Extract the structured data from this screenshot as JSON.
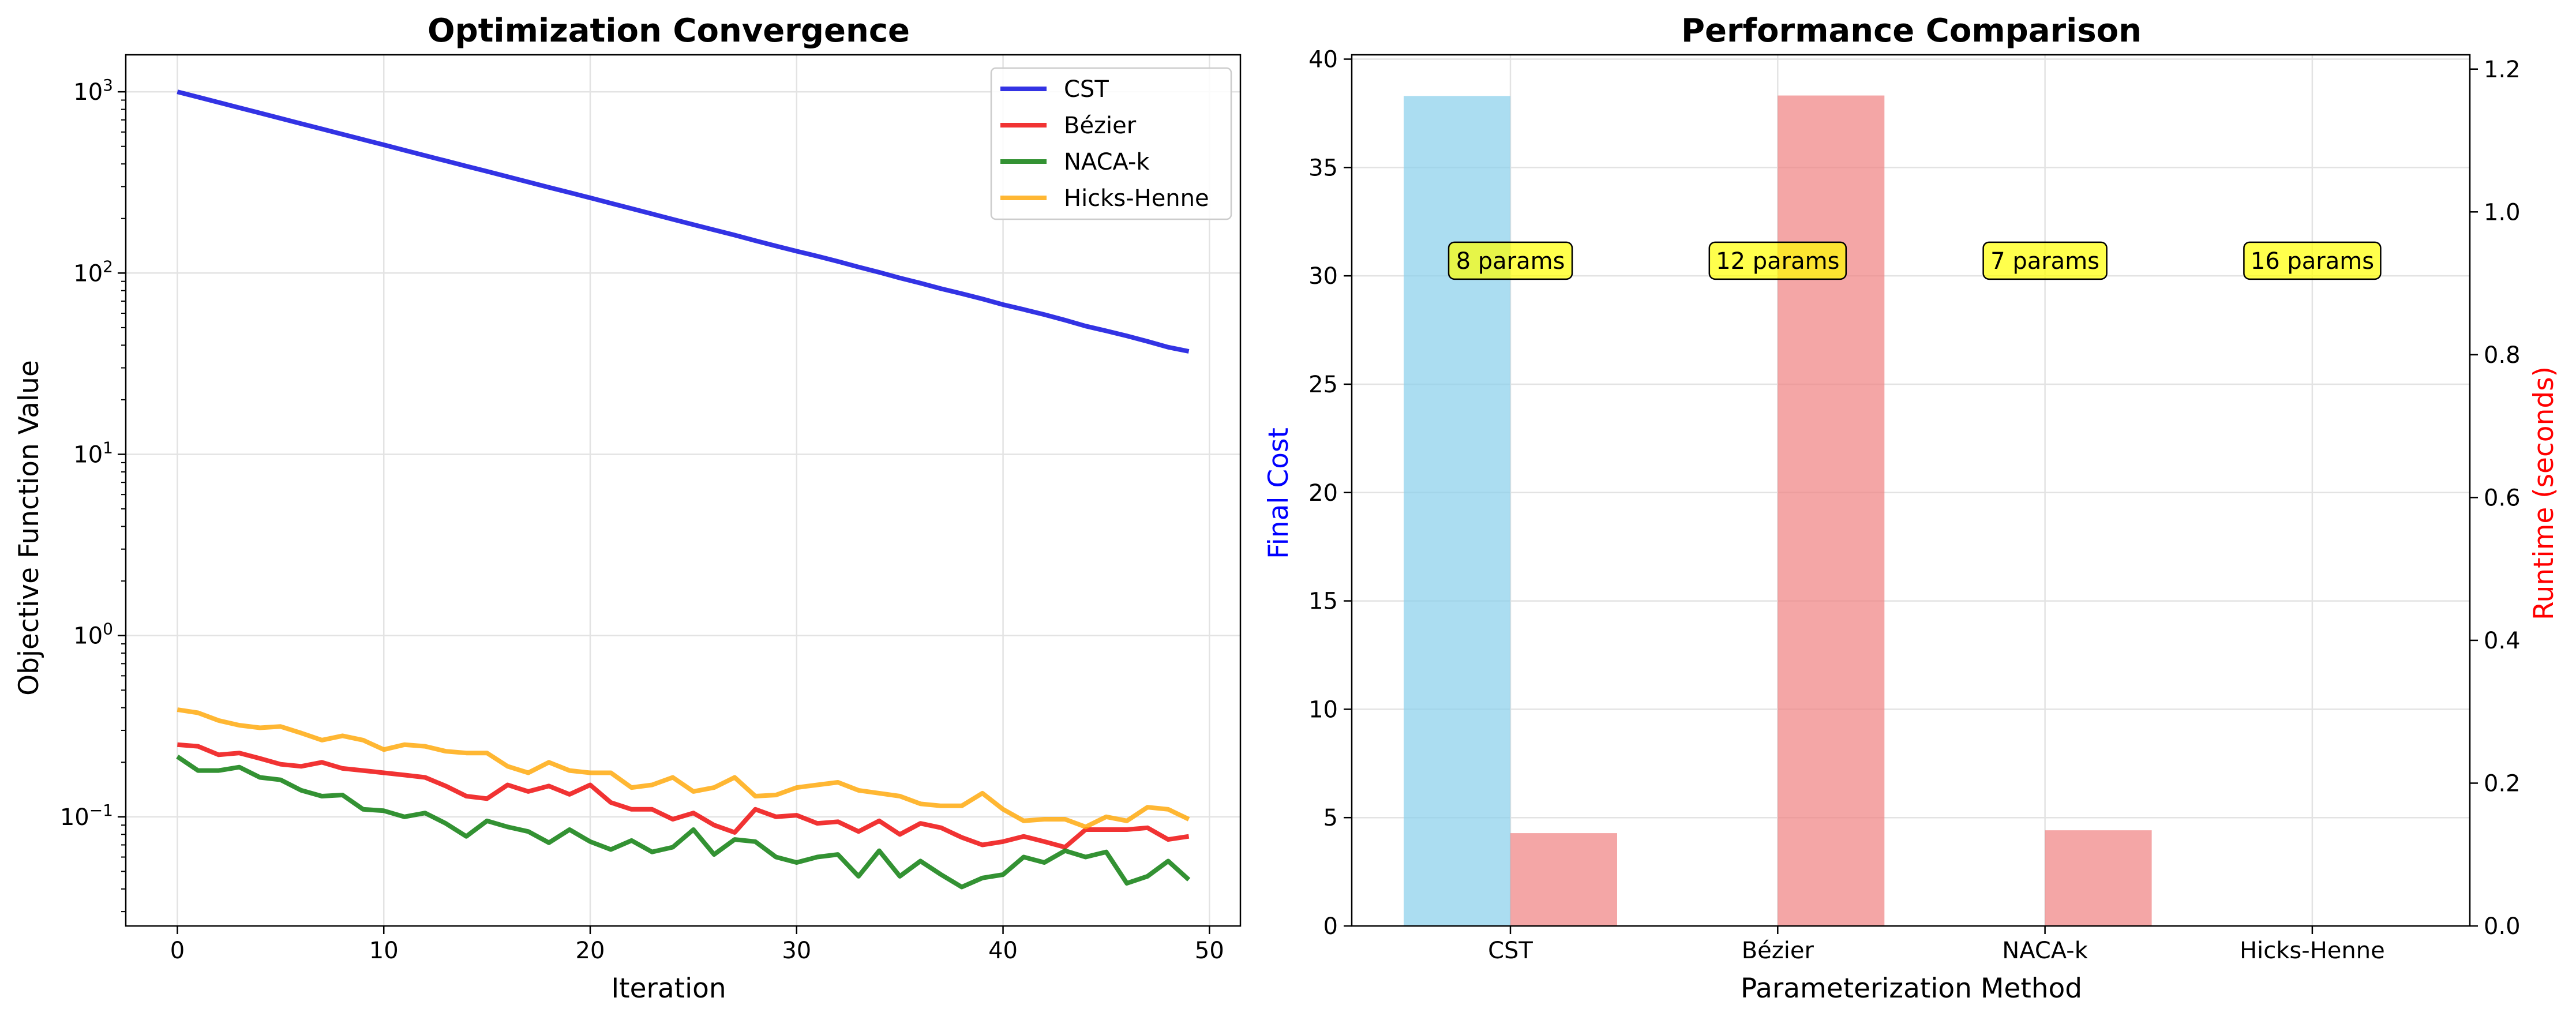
{
  "chart_data": [
    {
      "type": "line",
      "title": "Optimization Convergence",
      "xlabel": "Iteration",
      "ylabel": "Objective Function Value",
      "yscale": "log",
      "xlim": [
        -2.5,
        51.5
      ],
      "ylim": [
        0.025,
        1600
      ],
      "xticks": [
        0,
        10,
        20,
        30,
        40,
        50
      ],
      "yticks": [
        {
          "value": 0.1,
          "base": "10",
          "exp": "−1"
        },
        {
          "value": 1,
          "base": "10",
          "exp": "0"
        },
        {
          "value": 10,
          "base": "10",
          "exp": "1"
        },
        {
          "value": 100,
          "base": "10",
          "exp": "2"
        },
        {
          "value": 1000,
          "base": "10",
          "exp": "3"
        }
      ],
      "grid": true,
      "legend_position": "top-right",
      "x": [
        0,
        1,
        2,
        3,
        4,
        5,
        6,
        7,
        8,
        9,
        10,
        11,
        12,
        13,
        14,
        15,
        16,
        17,
        18,
        19,
        20,
        21,
        22,
        23,
        24,
        25,
        26,
        27,
        28,
        29,
        30,
        31,
        32,
        33,
        34,
        35,
        36,
        37,
        38,
        39,
        40,
        41,
        42,
        43,
        44,
        45,
        46,
        47,
        48,
        49
      ],
      "series": [
        {
          "name": "CST",
          "color": "#0000dd",
          "values": [
            1000,
            935,
            874,
            817,
            764,
            714,
            667,
            624,
            583,
            545,
            510,
            476,
            445,
            416,
            389,
            364,
            340,
            318,
            297,
            278,
            260,
            243,
            227,
            212,
            198,
            185,
            173,
            162,
            151,
            141,
            132,
            124,
            116,
            108,
            101,
            94,
            88,
            82,
            77,
            72,
            67,
            63,
            59,
            55,
            51,
            48,
            45,
            42,
            39,
            37
          ]
        },
        {
          "name": "Bézier",
          "color": "#ee0000",
          "values": [
            0.25,
            0.245,
            0.22,
            0.225,
            0.21,
            0.195,
            0.19,
            0.2,
            0.185,
            0.18,
            0.175,
            0.17,
            0.165,
            0.148,
            0.13,
            0.126,
            0.15,
            0.138,
            0.148,
            0.133,
            0.15,
            0.12,
            0.11,
            0.11,
            0.097,
            0.105,
            0.09,
            0.082,
            0.11,
            0.1,
            0.102,
            0.092,
            0.094,
            0.083,
            0.095,
            0.08,
            0.092,
            0.087,
            0.077,
            0.07,
            0.073,
            0.078,
            0.073,
            0.068,
            0.085,
            0.085,
            0.085,
            0.087,
            0.075,
            0.078
          ]
        },
        {
          "name": "NACA-k",
          "color": "#007700",
          "values": [
            0.215,
            0.18,
            0.18,
            0.188,
            0.165,
            0.16,
            0.14,
            0.13,
            0.132,
            0.11,
            0.108,
            0.1,
            0.105,
            0.092,
            0.078,
            0.095,
            0.088,
            0.083,
            0.072,
            0.085,
            0.073,
            0.066,
            0.074,
            0.064,
            0.068,
            0.085,
            0.062,
            0.075,
            0.073,
            0.06,
            0.056,
            0.06,
            0.062,
            0.047,
            0.065,
            0.047,
            0.057,
            0.048,
            0.041,
            0.046,
            0.048,
            0.06,
            0.056,
            0.065,
            0.06,
            0.064,
            0.043,
            0.047,
            0.057,
            0.045
          ]
        },
        {
          "name": "Hicks-Henne",
          "color": "#ffa500",
          "values": [
            0.39,
            0.375,
            0.34,
            0.32,
            0.31,
            0.315,
            0.29,
            0.265,
            0.28,
            0.265,
            0.235,
            0.25,
            0.245,
            0.23,
            0.225,
            0.225,
            0.19,
            0.175,
            0.2,
            0.18,
            0.175,
            0.175,
            0.145,
            0.15,
            0.165,
            0.138,
            0.145,
            0.165,
            0.13,
            0.132,
            0.145,
            0.15,
            0.155,
            0.14,
            0.135,
            0.13,
            0.118,
            0.115,
            0.115,
            0.135,
            0.11,
            0.095,
            0.097,
            0.097,
            0.088,
            0.1,
            0.095,
            0.113,
            0.11,
            0.097
          ]
        }
      ]
    },
    {
      "type": "bar",
      "title": "Performance Comparison",
      "xlabel": "Parameterization Method",
      "ylabel": "Final Cost",
      "ylabel_color": "#0000ff",
      "y2label": "Runtime (seconds)",
      "y2label_color": "#ff0000",
      "categories": [
        "CST",
        "Bézier",
        "NACA-k",
        "Hicks-Henne"
      ],
      "ylim": [
        0,
        40.2
      ],
      "y2lim": [
        0,
        1.22
      ],
      "yticks": [
        0,
        5,
        10,
        15,
        20,
        25,
        30,
        35,
        40
      ],
      "y2ticks": [
        "0.0",
        "0.2",
        "0.4",
        "0.6",
        "0.8",
        "1.0",
        "1.2"
      ],
      "grid": true,
      "series": [
        {
          "name": "Final Cost",
          "axis": "left",
          "color": "#87ceeb",
          "values": [
            38.3,
            0,
            0,
            0
          ]
        },
        {
          "name": "Runtime (seconds)",
          "axis": "right",
          "color": "#f08080",
          "values": [
            0.13,
            1.163,
            0.134,
            0
          ]
        }
      ],
      "annotations": [
        "8 params",
        "12 params",
        "7 params",
        "16 params"
      ],
      "annotation_y": 30.7,
      "annotation_color": "#ffff00"
    }
  ]
}
